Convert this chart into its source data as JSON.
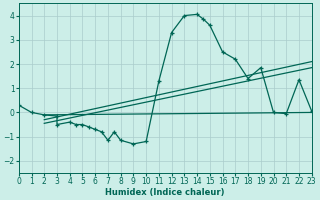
{
  "xlabel": "Humidex (Indice chaleur)",
  "bg_color": "#cceee8",
  "grid_color": "#aacccc",
  "line_color": "#006655",
  "xlim": [
    0,
    23
  ],
  "ylim": [
    -2.5,
    4.5
  ],
  "xticks": [
    0,
    1,
    2,
    3,
    4,
    5,
    6,
    7,
    8,
    9,
    10,
    11,
    12,
    13,
    14,
    15,
    16,
    17,
    18,
    19,
    20,
    21,
    22,
    23
  ],
  "yticks": [
    -2,
    -1,
    0,
    1,
    2,
    3,
    4
  ],
  "main_curve_x": [
    0,
    1,
    2,
    3,
    3,
    4,
    4.5,
    5,
    5.5,
    6,
    6.5,
    7,
    7.5,
    8,
    9,
    10,
    11,
    12,
    13,
    14,
    14.5,
    15,
    16,
    17,
    18,
    19,
    20,
    21,
    22,
    23
  ],
  "main_curve_y": [
    0.3,
    0.0,
    -0.1,
    -0.15,
    -0.5,
    -0.4,
    -0.5,
    -0.5,
    -0.6,
    -0.7,
    -0.8,
    -1.15,
    -0.8,
    -1.15,
    -1.3,
    -1.2,
    1.3,
    3.3,
    4.0,
    4.05,
    3.85,
    3.6,
    2.5,
    2.2,
    1.4,
    1.85,
    -0.0,
    -0.05,
    1.35,
    0.05
  ],
  "line1_x": [
    2,
    23
  ],
  "line1_y": [
    -0.1,
    0.0
  ],
  "line2_x": [
    2,
    23
  ],
  "line2_y": [
    -0.3,
    2.1
  ],
  "line3_x": [
    2,
    23
  ],
  "line3_y": [
    -0.45,
    1.85
  ]
}
